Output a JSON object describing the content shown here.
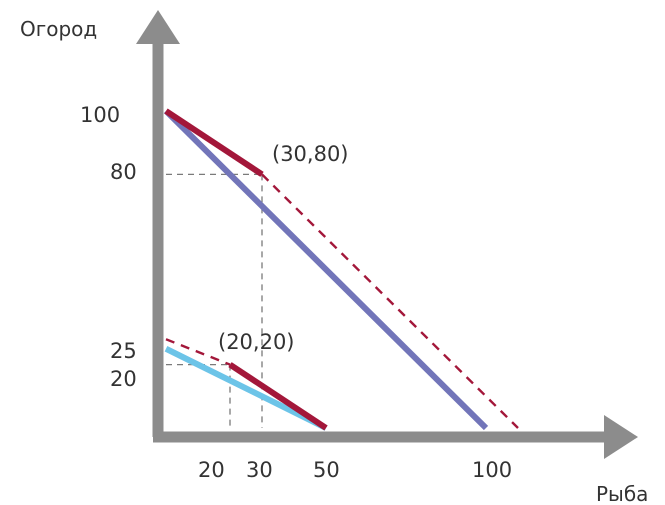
{
  "chart_data": {
    "type": "line",
    "xlabel": "Рыба",
    "ylabel": "Огород",
    "xlim": [
      0,
      110
    ],
    "ylim": [
      0,
      120
    ],
    "x_ticks": [
      "20",
      "30",
      "50",
      "100"
    ],
    "y_ticks": [
      "100",
      "80",
      "25",
      "20"
    ],
    "grid": false,
    "colors": {
      "axis": "#8c8c8c",
      "dark_red": "#a3173a",
      "purple": "#7275b9",
      "light_blue": "#6cc4e8",
      "guide": "#7a7a7a"
    },
    "series": [
      {
        "style": "solid",
        "color": "#7275b9",
        "points": [
          [
            0,
            100
          ],
          [
            100,
            0
          ]
        ]
      },
      {
        "style": "solid",
        "color": "#6cc4e8",
        "points": [
          [
            0,
            25
          ],
          [
            50,
            0
          ]
        ]
      },
      {
        "style": "solid",
        "color": "#a3173a",
        "points": [
          [
            0,
            100
          ],
          [
            30,
            80
          ]
        ]
      },
      {
        "style": "dashed",
        "color": "#a3173a",
        "points": [
          [
            30,
            80
          ],
          [
            110,
            0
          ]
        ]
      },
      {
        "style": "dashed",
        "color": "#a3173a",
        "points": [
          [
            0,
            28
          ],
          [
            20,
            20
          ]
        ]
      },
      {
        "style": "solid",
        "color": "#a3173a",
        "points": [
          [
            20,
            20
          ],
          [
            50,
            0
          ]
        ]
      }
    ],
    "annotations": [
      {
        "text": "(30,80)",
        "x": 30,
        "y": 80
      },
      {
        "text": "(20,20)",
        "x": 20,
        "y": 20
      }
    ],
    "guides": [
      {
        "from": [
          0,
          80
        ],
        "to": [
          30,
          80
        ]
      },
      {
        "from": [
          30,
          80
        ],
        "to": [
          30,
          0
        ]
      },
      {
        "from": [
          0,
          20
        ],
        "to": [
          20,
          20
        ]
      },
      {
        "from": [
          20,
          20
        ],
        "to": [
          20,
          0
        ]
      }
    ]
  }
}
